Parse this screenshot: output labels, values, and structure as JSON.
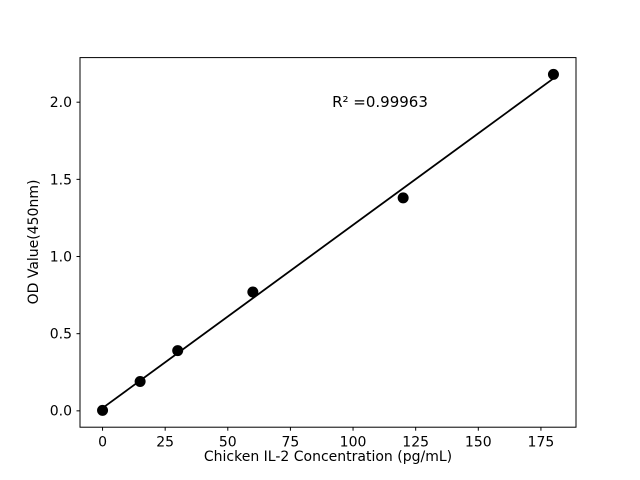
{
  "figure": {
    "background": "#ffffff"
  },
  "chart_data": {
    "type": "scatter",
    "title": "",
    "xlabel": "Chicken IL-2 Concentration (pg/mL)",
    "ylabel": "OD Value(450nm)",
    "annotation": "R² =0.99963",
    "legend": null,
    "grid": false,
    "xlim": [
      -9,
      189
    ],
    "ylim": [
      -0.106,
      2.289
    ],
    "x_ticks": [
      {
        "value": 0,
        "label": "0"
      },
      {
        "value": 25,
        "label": "25"
      },
      {
        "value": 50,
        "label": "50"
      },
      {
        "value": 75,
        "label": "75"
      },
      {
        "value": 100,
        "label": "100"
      },
      {
        "value": 125,
        "label": "125"
      },
      {
        "value": 150,
        "label": "150"
      },
      {
        "value": 175,
        "label": "175"
      }
    ],
    "y_ticks": [
      {
        "value": 0.0,
        "label": "0.0"
      },
      {
        "value": 0.5,
        "label": "0.5"
      },
      {
        "value": 1.0,
        "label": "1.0"
      },
      {
        "value": 1.5,
        "label": "1.5"
      },
      {
        "value": 2.0,
        "label": "2.0"
      }
    ],
    "x": [
      0,
      15,
      30,
      60,
      120,
      180
    ],
    "y": [
      0.003,
      0.19,
      0.39,
      0.77,
      1.38,
      2.18
    ],
    "fit_line": {
      "x1": 0,
      "y1": 0.018,
      "x2": 180,
      "y2": 2.154
    },
    "marker_radius": 5.5,
    "colors": {
      "marker": "#000000",
      "line": "#000000",
      "axis": "#000000",
      "background": "#ffffff"
    }
  }
}
